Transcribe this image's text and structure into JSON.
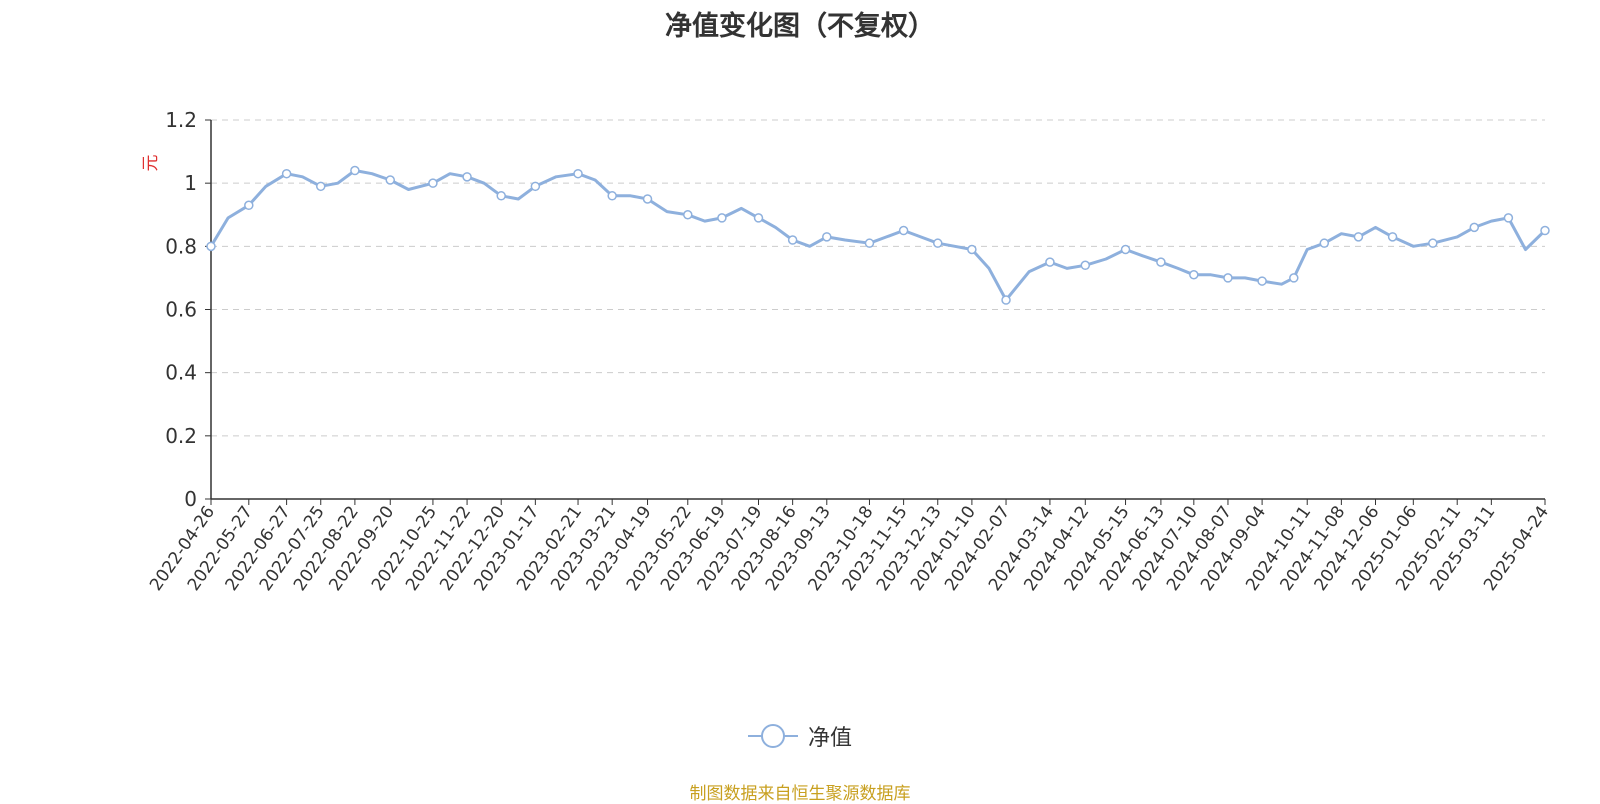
{
  "title": "净值变化图（不复权）",
  "source_note": "制图数据来自恒生聚源数据库",
  "colors": {
    "line": "#8eb0dd",
    "ylabel": "#e03030",
    "source": "#c8a020",
    "grid": "#cccccc",
    "axis": "#333333"
  },
  "chart_data": {
    "type": "line",
    "title": "净值变化图（不复权）",
    "xlabel": "",
    "ylabel": "元",
    "ylim": [
      0,
      1.2
    ],
    "yticks": [
      "0",
      "0.2",
      "0.4",
      "0.6",
      "0.8",
      "1",
      "1.2"
    ],
    "grid": true,
    "legend_position": "bottom-center",
    "x_tick_labels": [
      "2022-04-26",
      "2022-05-27",
      "2022-06-27",
      "2022-07-25",
      "2022-08-22",
      "2022-09-20",
      "2022-10-25",
      "2022-11-22",
      "2022-12-20",
      "2023-01-17",
      "2023-02-21",
      "2023-03-21",
      "2023-04-19",
      "2023-05-22",
      "2023-06-19",
      "2023-07-19",
      "2023-08-16",
      "2023-09-13",
      "2023-10-18",
      "2023-11-15",
      "2023-12-13",
      "2024-01-10",
      "2024-02-07",
      "2024-03-14",
      "2024-04-12",
      "2024-05-15",
      "2024-06-13",
      "2024-07-10",
      "2024-08-07",
      "2024-09-04",
      "2024-10-11",
      "2024-11-08",
      "2024-12-06",
      "2025-01-06",
      "2025-02-11",
      "2025-03-11",
      "2025-04-24"
    ],
    "series": [
      {
        "name": "净值",
        "x": [
          "2022-04-26",
          "2022-05-10",
          "2022-05-27",
          "2022-06-10",
          "2022-06-27",
          "2022-07-10",
          "2022-07-25",
          "2022-08-08",
          "2022-08-22",
          "2022-09-05",
          "2022-09-20",
          "2022-10-05",
          "2022-10-25",
          "2022-11-08",
          "2022-11-22",
          "2022-12-06",
          "2022-12-20",
          "2023-01-03",
          "2023-01-17",
          "2023-02-03",
          "2023-02-21",
          "2023-03-07",
          "2023-03-21",
          "2023-04-05",
          "2023-04-19",
          "2023-05-05",
          "2023-05-22",
          "2023-06-05",
          "2023-06-19",
          "2023-07-05",
          "2023-07-19",
          "2023-08-02",
          "2023-08-16",
          "2023-08-30",
          "2023-09-13",
          "2023-09-28",
          "2023-10-18",
          "2023-11-01",
          "2023-11-15",
          "2023-11-29",
          "2023-12-13",
          "2023-12-27",
          "2024-01-10",
          "2024-01-24",
          "2024-02-07",
          "2024-02-26",
          "2024-03-14",
          "2024-03-28",
          "2024-04-12",
          "2024-04-29",
          "2024-05-15",
          "2024-05-29",
          "2024-06-13",
          "2024-06-27",
          "2024-07-10",
          "2024-07-24",
          "2024-08-07",
          "2024-08-21",
          "2024-09-04",
          "2024-09-20",
          "2024-09-30",
          "2024-10-11",
          "2024-10-25",
          "2024-11-08",
          "2024-11-22",
          "2024-12-06",
          "2024-12-20",
          "2025-01-06",
          "2025-01-22",
          "2025-02-11",
          "2025-02-25",
          "2025-03-11",
          "2025-03-25",
          "2025-04-08",
          "2025-04-24"
        ],
        "values": [
          0.8,
          0.89,
          0.93,
          0.99,
          1.03,
          1.02,
          0.99,
          1.0,
          1.04,
          1.03,
          1.01,
          0.98,
          1.0,
          1.03,
          1.02,
          1.0,
          0.96,
          0.95,
          0.99,
          1.02,
          1.03,
          1.01,
          0.96,
          0.96,
          0.95,
          0.91,
          0.9,
          0.88,
          0.89,
          0.92,
          0.89,
          0.86,
          0.82,
          0.8,
          0.83,
          0.82,
          0.81,
          0.83,
          0.85,
          0.83,
          0.81,
          0.8,
          0.79,
          0.73,
          0.63,
          0.72,
          0.75,
          0.73,
          0.74,
          0.76,
          0.79,
          0.77,
          0.75,
          0.73,
          0.71,
          0.71,
          0.7,
          0.7,
          0.69,
          0.68,
          0.7,
          0.79,
          0.81,
          0.84,
          0.83,
          0.86,
          0.83,
          0.8,
          0.81,
          0.83,
          0.86,
          0.88,
          0.89,
          0.79,
          0.85
        ]
      }
    ]
  }
}
